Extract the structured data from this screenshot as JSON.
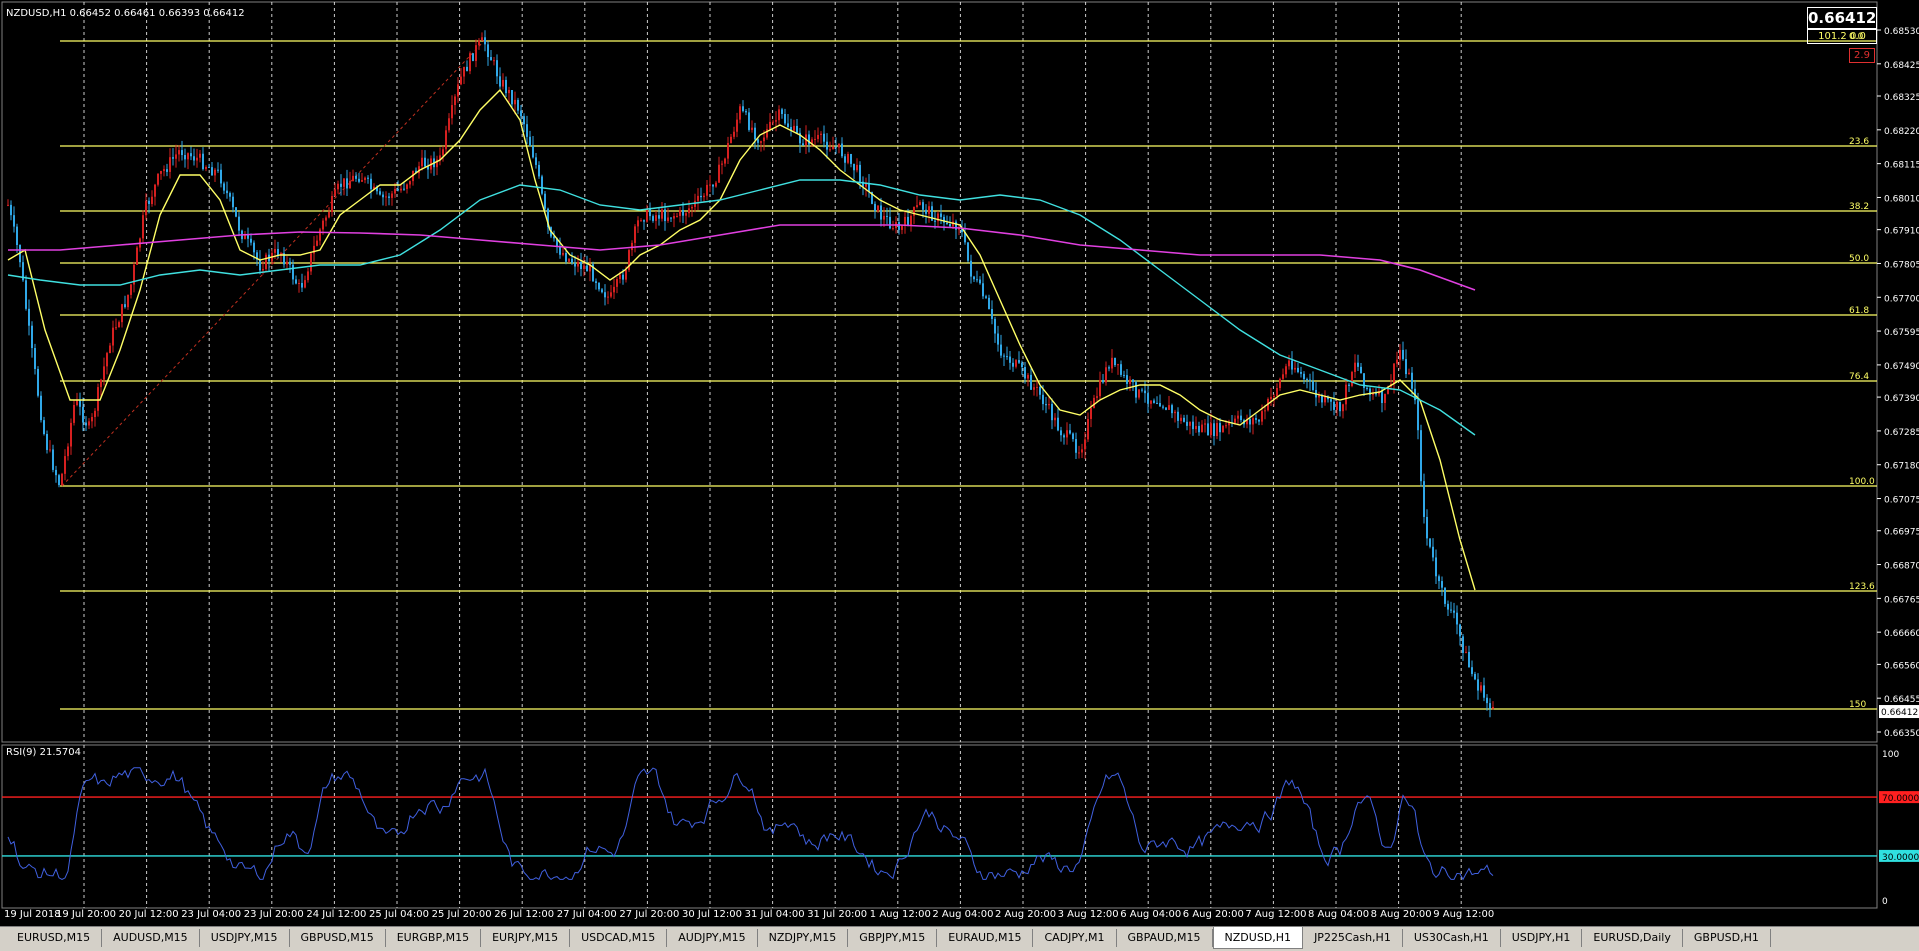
{
  "header": {
    "symbol_line": "NZDUSD,H1  0.66452 0.66461 0.66393 0.66412",
    "current_price": "0.66412",
    "fib_readout": "101.2   0.0",
    "spread": "2.9",
    "price_marker": "0.66412"
  },
  "rsi": {
    "title": "RSI(9) 21.5704",
    "levels": [
      "100",
      "70.0000",
      "30.0000",
      "0"
    ]
  },
  "price_axis": {
    "labels": [
      "0.68530",
      "0.68425",
      "0.68325",
      "0.68220",
      "0.68115",
      "0.68010",
      "0.67910",
      "0.67805",
      "0.67700",
      "0.67595",
      "0.67490",
      "0.67390",
      "0.67285",
      "0.67180",
      "0.67075",
      "0.66975",
      "0.66870",
      "0.66765",
      "0.66660",
      "0.66560",
      "0.66455",
      "0.66350"
    ],
    "range": [
      0.6635,
      0.6853
    ]
  },
  "fibonacci": {
    "levels": [
      "0.0",
      "23.6",
      "38.2",
      "50.0",
      "61.8",
      "76.4",
      "100.0",
      "123.6",
      "150"
    ]
  },
  "time_axis": {
    "labels": [
      "19 Jul 2018",
      "19 Jul 20:00",
      "20 Jul 12:00",
      "23 Jul 04:00",
      "23 Jul 20:00",
      "24 Jul 12:00",
      "25 Jul 04:00",
      "25 Jul 20:00",
      "26 Jul 12:00",
      "27 Jul 04:00",
      "27 Jul 20:00",
      "30 Jul 12:00",
      "31 Jul 04:00",
      "31 Jul 20:00",
      "1 Aug 12:00",
      "2 Aug 04:00",
      "2 Aug 20:00",
      "3 Aug 12:00",
      "6 Aug 04:00",
      "6 Aug 20:00",
      "7 Aug 12:00",
      "8 Aug 04:00",
      "8 Aug 20:00",
      "9 Aug 12:00"
    ]
  },
  "tabs": [
    {
      "label": "EURUSD,M15",
      "active": false
    },
    {
      "label": "AUDUSD,M15",
      "active": false
    },
    {
      "label": "USDJPY,M15",
      "active": false
    },
    {
      "label": "GBPUSD,M15",
      "active": false
    },
    {
      "label": "EURGBP,M15",
      "active": false
    },
    {
      "label": "EURJPY,M15",
      "active": false
    },
    {
      "label": "USDCAD,M15",
      "active": false
    },
    {
      "label": "AUDJPY,M15",
      "active": false
    },
    {
      "label": "NZDJPY,M15",
      "active": false
    },
    {
      "label": "GBPJPY,M15",
      "active": false
    },
    {
      "label": "EURAUD,M15",
      "active": false
    },
    {
      "label": "CADJPY,M1",
      "active": false
    },
    {
      "label": "GBPAUD,M15",
      "active": false
    },
    {
      "label": "NZDUSD,H1",
      "active": true
    },
    {
      "label": "JP225Cash,H1",
      "active": false
    },
    {
      "label": "US30Cash,H1",
      "active": false
    },
    {
      "label": "USDJPY,H1",
      "active": false
    },
    {
      "label": "EURUSD,Daily",
      "active": false
    },
    {
      "label": "GBPUSD,H1",
      "active": false
    }
  ],
  "colors": {
    "background": "#000000",
    "bull_candle": "#d62020",
    "bear_candle": "#30a8e8",
    "fib_line": "#ffff66",
    "ma_fast": "#ffff66",
    "ma_mid": "#40e0e0",
    "ma_slow": "#e040e0",
    "rsi_line": "#4060e0",
    "rsi_upper": "#ff2020",
    "rsi_lower": "#30e0e0",
    "grid": "#ffffff"
  }
}
